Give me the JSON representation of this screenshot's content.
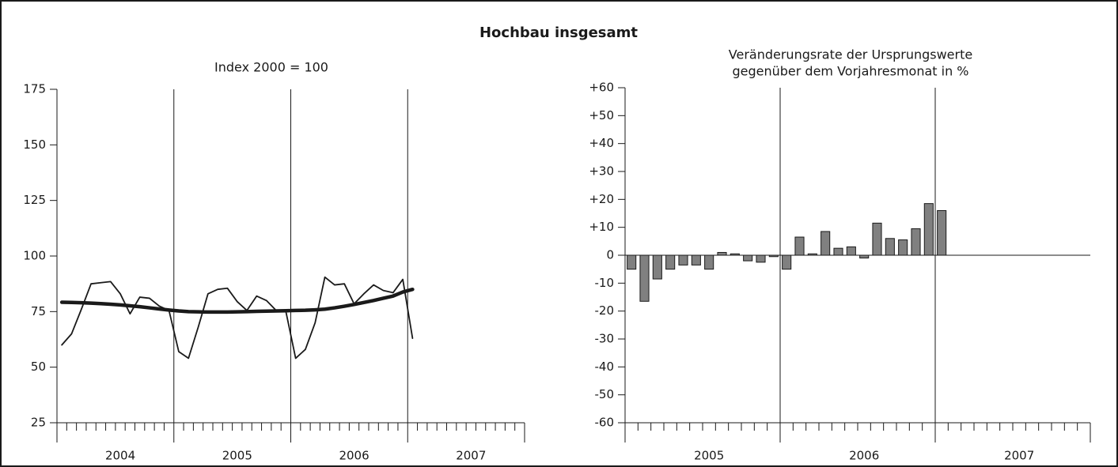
{
  "title": "Hochbau insgesamt",
  "chart_data": [
    {
      "type": "line",
      "subtitle": [
        "Index 2000 = 100"
      ],
      "categories": [
        null,
        null,
        null,
        null,
        null,
        null,
        "2004",
        null,
        null,
        null,
        null,
        null,
        null,
        null,
        null,
        null,
        null,
        null,
        "2005",
        null,
        null,
        null,
        null,
        null,
        null,
        null,
        null,
        null,
        null,
        null,
        "2006",
        null,
        null,
        null,
        null,
        null,
        null,
        null,
        null,
        null,
        null,
        null,
        "2007",
        null,
        null,
        null,
        null,
        null
      ],
      "series": [
        {
          "color": "#1a1a1a",
          "line_width": 1.8,
          "values": [
            60,
            65,
            76,
            87.5,
            88,
            88.5,
            83,
            74,
            81.5,
            81,
            77.5,
            75.5,
            57,
            54,
            68,
            83,
            85,
            85.5,
            79.5,
            75.5,
            82,
            80,
            75.5,
            75,
            54,
            58,
            70,
            90.5,
            87,
            87.5,
            78.5,
            83,
            87,
            84.5,
            83.5,
            89.5,
            63,
            null,
            null,
            null,
            null,
            null,
            null,
            null,
            null,
            null,
            null,
            null
          ]
        },
        {
          "color": "#1a1a1a",
          "line_width": 4.5,
          "values": [
            79.2,
            79.1,
            79,
            78.8,
            78.6,
            78.3,
            78,
            77.6,
            77.2,
            76.7,
            76.2,
            75.7,
            75.3,
            75,
            74.9,
            74.8,
            74.8,
            74.8,
            74.9,
            75,
            75.1,
            75.2,
            75.3,
            75.4,
            75.5,
            75.6,
            75.8,
            76.1,
            76.7,
            77.4,
            78.2,
            79.1,
            80,
            81,
            82,
            83.8,
            85,
            null,
            null,
            null,
            null,
            null,
            null,
            null,
            null,
            null,
            null,
            null
          ]
        }
      ],
      "ylim": [
        25,
        175
      ],
      "yticks": [
        25,
        50,
        75,
        100,
        125,
        150,
        175
      ]
    },
    {
      "type": "bar",
      "subtitle": [
        "Veränderungsrate der Ursprungswerte",
        "gegenüber dem Vorjahresmonat in %"
      ],
      "categories": [
        null,
        null,
        null,
        null,
        null,
        null,
        "2005",
        null,
        null,
        null,
        null,
        null,
        null,
        null,
        null,
        null,
        null,
        null,
        "2006",
        null,
        null,
        null,
        null,
        null,
        null,
        null,
        null,
        null,
        null,
        null,
        "2007",
        null,
        null,
        null,
        null,
        null
      ],
      "series": [
        {
          "color": "#808080",
          "values": [
            -5,
            -16.5,
            -8.5,
            -5,
            -3.5,
            -3.5,
            -5,
            1,
            0.5,
            -2,
            -2.5,
            -0.5,
            -5,
            6.5,
            0.5,
            8.5,
            2.5,
            3,
            -1,
            11.5,
            6,
            5.5,
            9.5,
            18.5,
            16,
            null,
            null,
            null,
            null,
            null,
            null,
            null,
            null,
            null,
            null,
            null
          ]
        }
      ],
      "ylim": [
        -60,
        60
      ],
      "yticks": [
        -60,
        -50,
        -40,
        -30,
        -20,
        -10,
        0,
        {
          "value": 10,
          "label": "+10"
        },
        {
          "value": 20,
          "label": "+20"
        },
        {
          "value": 30,
          "label": "+30"
        },
        {
          "value": 40,
          "label": "+40"
        },
        {
          "value": 50,
          "label": "+50"
        },
        {
          "value": 60,
          "label": "+60"
        }
      ]
    }
  ]
}
